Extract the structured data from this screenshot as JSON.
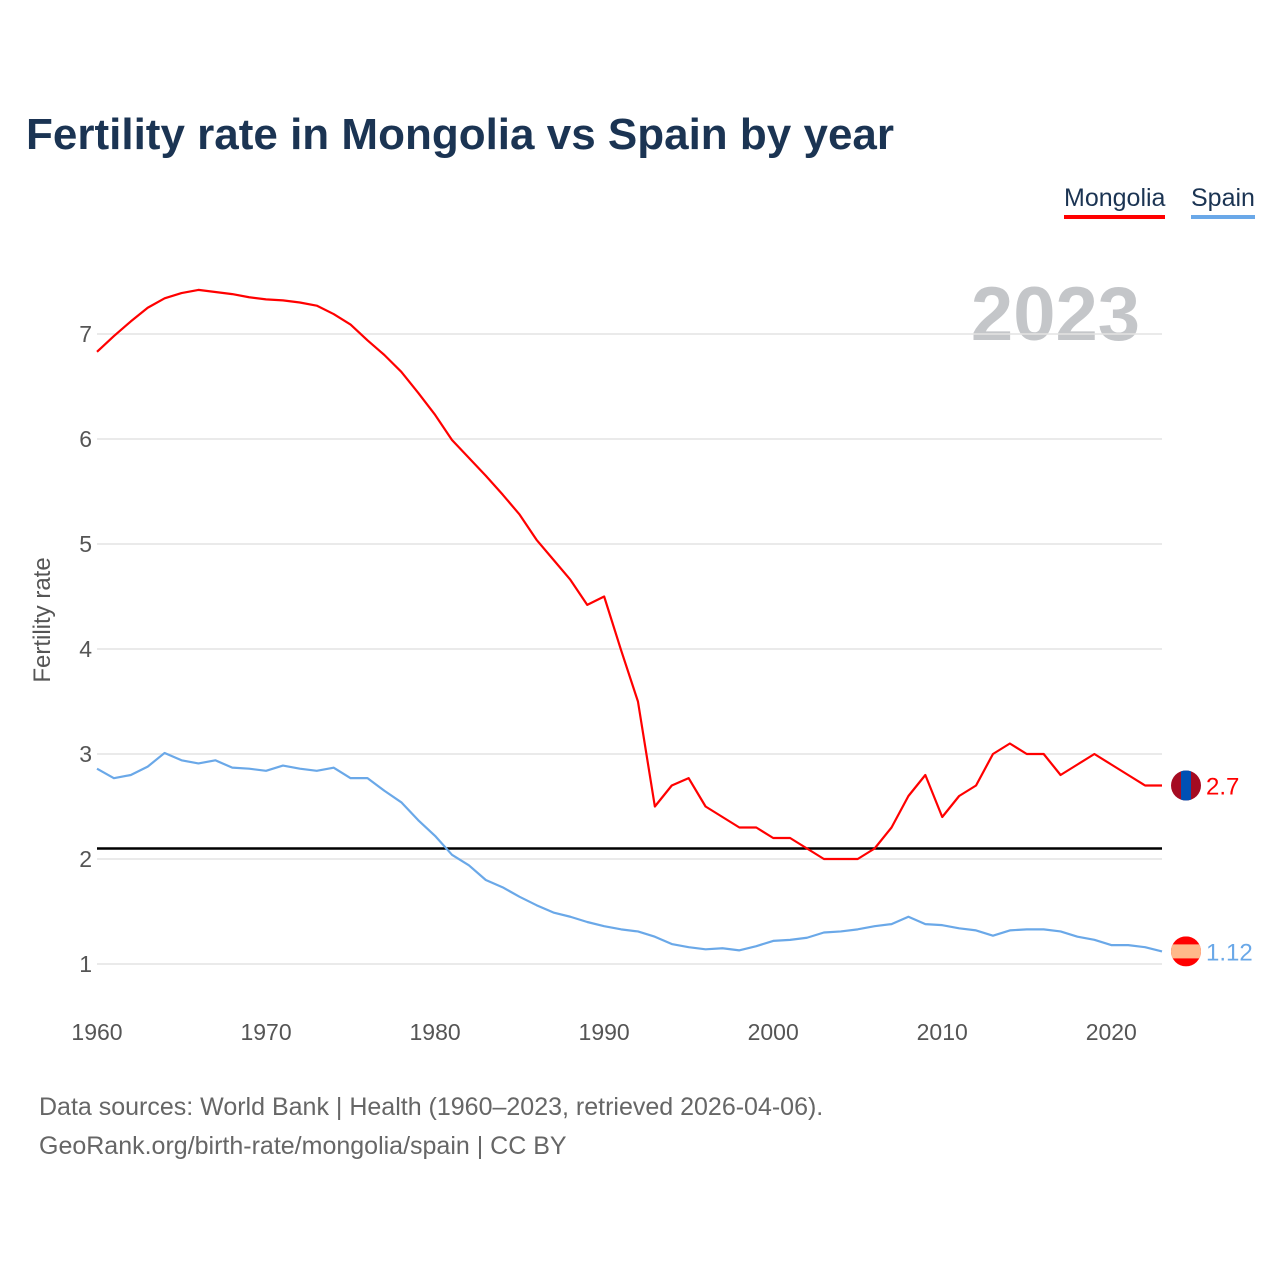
{
  "title": "Fertility rate in Mongolia vs Spain by year",
  "legend": {
    "mongolia": "Mongolia",
    "spain": "Spain"
  },
  "year_label": "2023",
  "source_line1": "Data sources: World Bank | Health (1960–2023, retrieved 2026-04-06).",
  "source_line2": "GeoRank.org/birth-rate/mongolia/spain | CC BY",
  "chart_data": {
    "type": "line",
    "title": "Fertility rate in Mongolia vs Spain by year",
    "xlabel": "",
    "ylabel": "Fertility rate",
    "xlim": [
      1960,
      2023
    ],
    "ylim": [
      0.6,
      7.6
    ],
    "xticks": [
      1960,
      1970,
      1980,
      1990,
      2000,
      2010,
      2020
    ],
    "yticks": [
      1,
      2,
      3,
      4,
      5,
      6,
      7
    ],
    "grid": true,
    "legend_position": "top-right",
    "reference_line": {
      "y": 2.1,
      "color": "#000000"
    },
    "x_start": 1960,
    "series": [
      {
        "name": "Mongolia",
        "color": "#ff0000",
        "end_label": "2.7",
        "values": [
          6.83,
          6.98,
          7.12,
          7.25,
          7.34,
          7.39,
          7.42,
          7.4,
          7.38,
          7.35,
          7.33,
          7.32,
          7.3,
          7.27,
          7.19,
          7.09,
          6.94,
          6.8,
          6.64,
          6.44,
          6.23,
          5.99,
          5.82,
          5.65,
          5.47,
          5.28,
          5.04,
          4.85,
          4.66,
          4.42,
          4.5,
          3.99,
          3.5,
          2.5,
          2.7,
          2.77,
          2.5,
          2.4,
          2.3,
          2.3,
          2.2,
          2.2,
          2.1,
          2.0,
          2.0,
          2.0,
          2.1,
          2.3,
          2.6,
          2.8,
          2.4,
          2.6,
          2.7,
          3.0,
          3.1,
          3.0,
          3.0,
          2.8,
          2.9,
          3.0,
          2.9,
          2.8,
          2.7,
          2.7
        ]
      },
      {
        "name": "Spain",
        "color": "#6aa8e8",
        "end_label": "1.12",
        "values": [
          2.86,
          2.77,
          2.8,
          2.88,
          3.01,
          2.94,
          2.91,
          2.94,
          2.87,
          2.86,
          2.84,
          2.89,
          2.86,
          2.84,
          2.87,
          2.77,
          2.77,
          2.65,
          2.54,
          2.37,
          2.22,
          2.04,
          1.94,
          1.8,
          1.73,
          1.64,
          1.56,
          1.49,
          1.45,
          1.4,
          1.36,
          1.33,
          1.31,
          1.26,
          1.19,
          1.16,
          1.14,
          1.15,
          1.13,
          1.17,
          1.22,
          1.23,
          1.25,
          1.3,
          1.31,
          1.33,
          1.36,
          1.38,
          1.45,
          1.38,
          1.37,
          1.34,
          1.32,
          1.27,
          1.32,
          1.33,
          1.33,
          1.31,
          1.26,
          1.23,
          1.18,
          1.18,
          1.16,
          1.12
        ]
      }
    ]
  }
}
